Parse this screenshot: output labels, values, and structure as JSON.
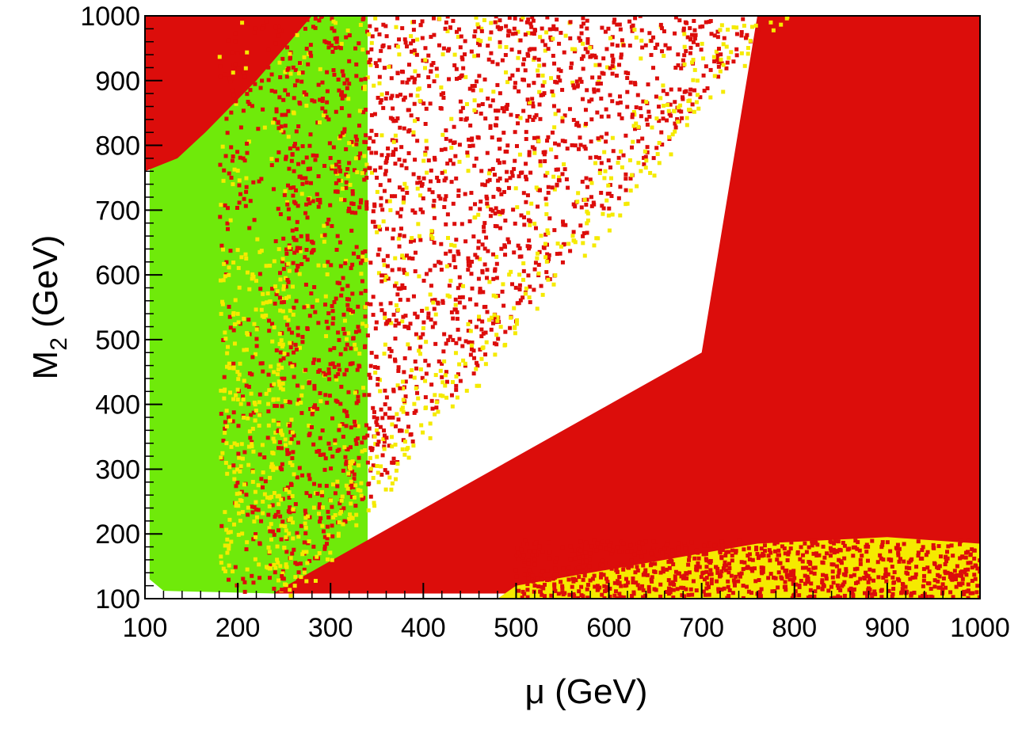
{
  "chart_data": {
    "type": "scatter",
    "title": "",
    "xlabel": "μ (GeV)",
    "ylabel_main": "M",
    "ylabel_sub": "2",
    "ylabel_tail": " (GeV)",
    "xlim": [
      100,
      1000
    ],
    "ylim": [
      100,
      1000
    ],
    "x_ticks": [
      "100",
      "200",
      "300",
      "400",
      "500",
      "600",
      "700",
      "800",
      "900",
      "1000"
    ],
    "y_ticks": [
      "100",
      "200",
      "300",
      "400",
      "500",
      "600",
      "700",
      "800",
      "900",
      "1000"
    ],
    "grid": false,
    "legend": "none",
    "colors": {
      "red": "#dc0d0b",
      "green": "#6fea0a",
      "yellow": "#f5ea00",
      "background": "#ffffff",
      "frame": "#000000"
    },
    "regions": [
      {
        "color": "green",
        "description_points_mu_M2": [
          [
            105,
            1000
          ],
          [
            105,
            130
          ],
          [
            120,
            112
          ],
          [
            240,
            108
          ],
          [
            340,
            108
          ],
          [
            340,
            1000
          ]
        ]
      },
      {
        "color": "red",
        "description_points_mu_M2": [
          [
            100,
            1000
          ],
          [
            100,
            760
          ],
          [
            135,
            780
          ],
          [
            165,
            820
          ],
          [
            220,
            900
          ],
          [
            280,
            1000
          ]
        ]
      },
      {
        "color": "red",
        "description_points_mu_M2": [
          [
            240,
            108
          ],
          [
            1000,
            108
          ],
          [
            1000,
            1000
          ],
          [
            760,
            1000
          ],
          [
            700,
            480
          ],
          [
            240,
            110
          ]
        ]
      },
      {
        "color": "yellow",
        "description_points_mu_M2": [
          [
            480,
            100
          ],
          [
            1000,
            100
          ],
          [
            1000,
            185
          ],
          [
            900,
            195
          ],
          [
            760,
            185
          ],
          [
            620,
            150
          ],
          [
            500,
            120
          ]
        ]
      }
    ]
  }
}
